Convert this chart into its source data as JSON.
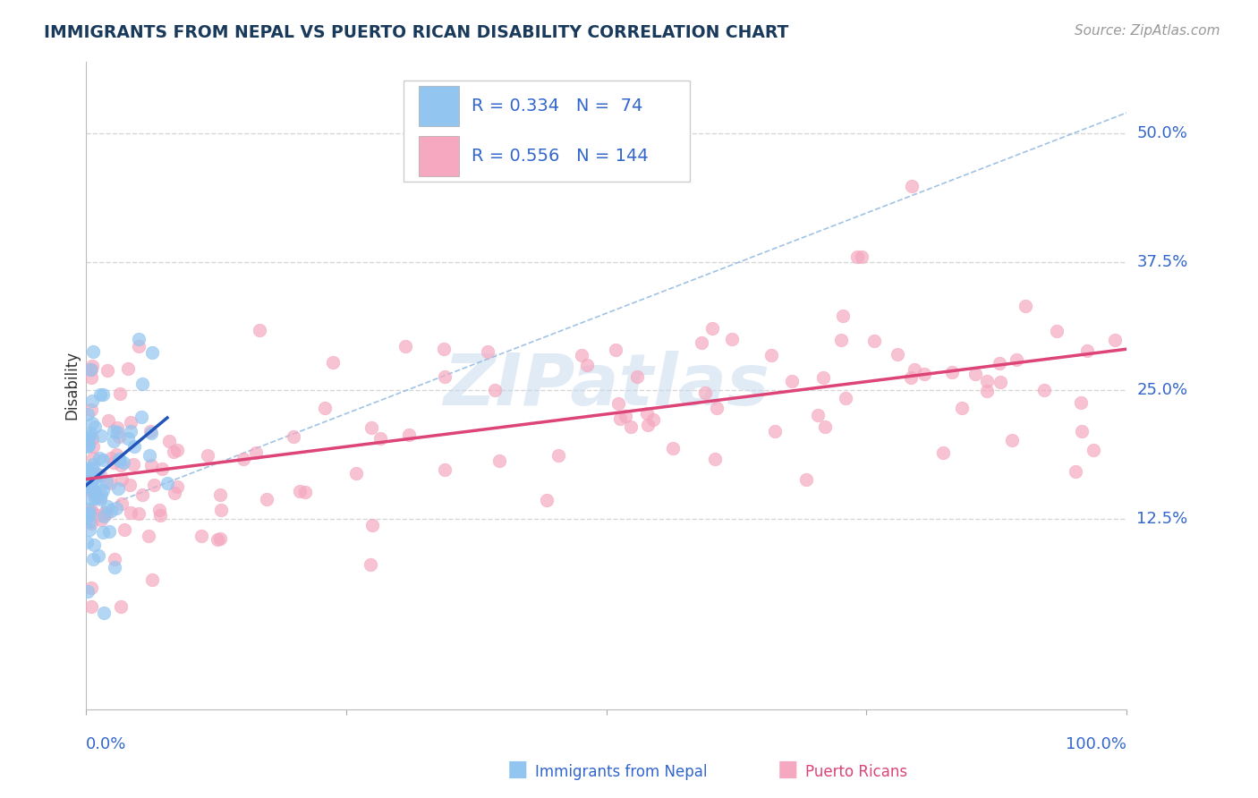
{
  "title": "IMMIGRANTS FROM NEPAL VS PUERTO RICAN DISABILITY CORRELATION CHART",
  "source": "Source: ZipAtlas.com",
  "ylabel": "Disability",
  "ytick_labels": [
    "12.5%",
    "25.0%",
    "37.5%",
    "50.0%"
  ],
  "ytick_values": [
    0.125,
    0.25,
    0.375,
    0.5
  ],
  "legend_label_1": "Immigrants from Nepal",
  "legend_label_2": "Puerto Ricans",
  "nepal_color": "#92c5f0",
  "pr_color": "#f5a8c0",
  "nepal_line_color": "#2255bb",
  "pr_line_color": "#dd4477",
  "diag_line_color": "#90b8e0",
  "background": "#ffffff",
  "grid_color": "#cccccc",
  "title_color": "#1a3a5c",
  "axis_label_color": "#3366cc",
  "watermark_color": "#c5d8ed",
  "nepal_R": 0.334,
  "nepal_N": 74,
  "pr_R": 0.556,
  "pr_N": 144,
  "xlim": [
    0.0,
    1.0
  ],
  "ylim": [
    -0.06,
    0.57
  ]
}
